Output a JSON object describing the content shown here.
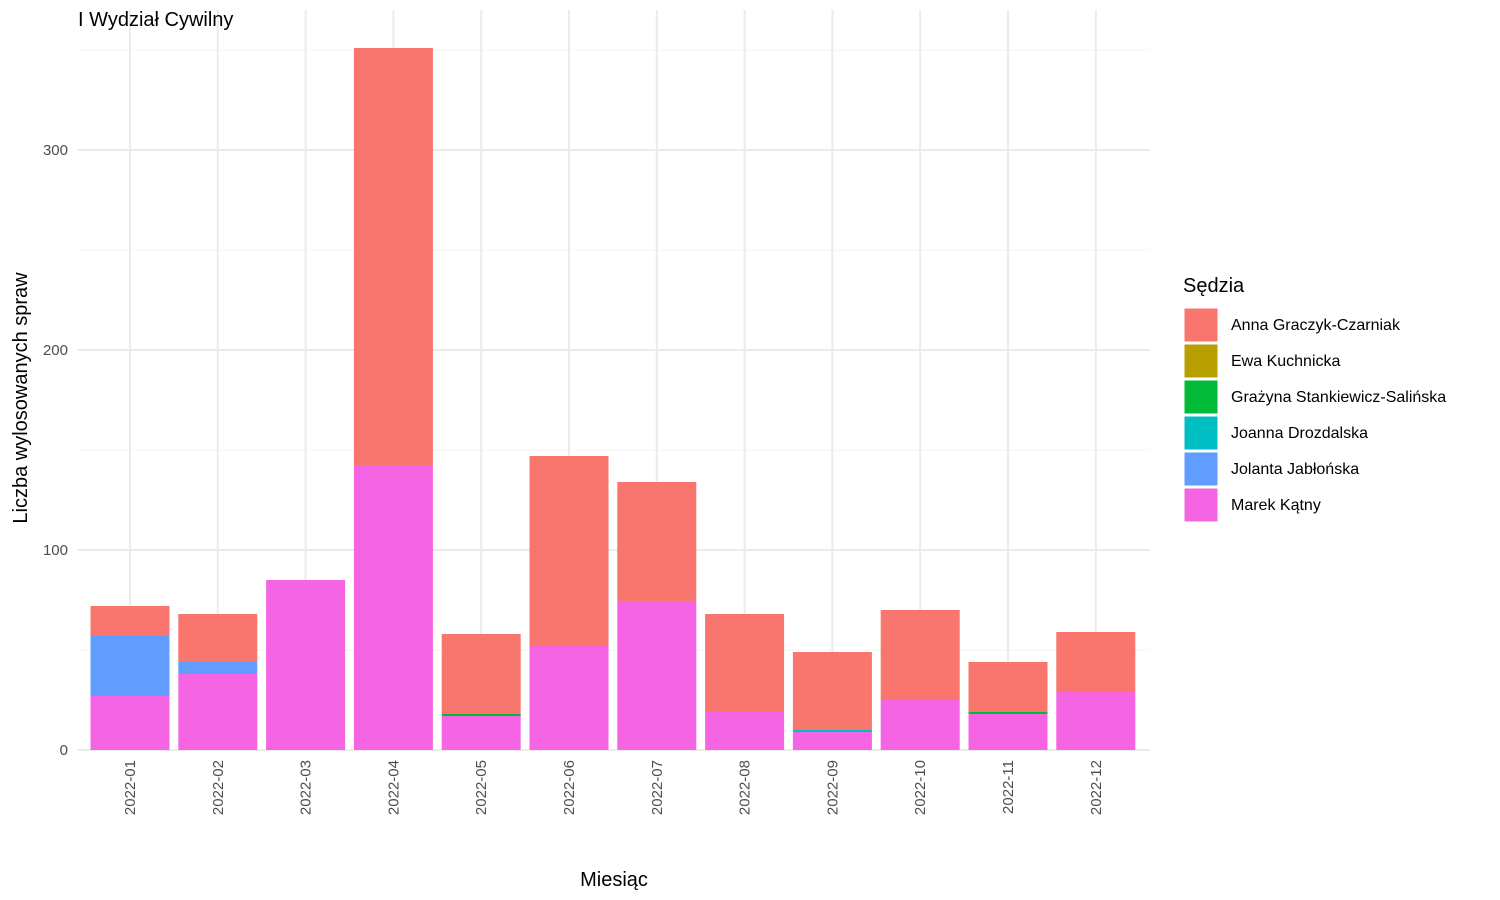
{
  "chart_data": {
    "type": "bar",
    "stacked": true,
    "title": "I Wydział Cywilny",
    "xlabel": "Miesiąc",
    "ylabel": "Liczba wylosowanych spraw",
    "ylim": [
      0,
      355
    ],
    "yticks": [
      0,
      100,
      200,
      300
    ],
    "grid": true,
    "legend_position": "right",
    "legend_title": "Sędzia",
    "categories": [
      "2022-01",
      "2022-02",
      "2022-03",
      "2022-04",
      "2022-05",
      "2022-06",
      "2022-07",
      "2022-08",
      "2022-09",
      "2022-10",
      "2022-11",
      "2022-12"
    ],
    "series": [
      {
        "name": "Marek Kątny",
        "color": "#F564E3",
        "values": [
          27,
          38,
          85,
          142,
          17,
          52,
          74,
          19,
          9,
          25,
          18,
          29
        ]
      },
      {
        "name": "Jolanta Jabłońska",
        "color": "#619CFF",
        "values": [
          30,
          6,
          0,
          0,
          0,
          0,
          0,
          0,
          0,
          0,
          0,
          0
        ]
      },
      {
        "name": "Joanna Drozdalska",
        "color": "#00BFC4",
        "values": [
          0,
          0,
          0,
          0,
          0,
          0,
          0,
          0,
          1,
          0,
          0,
          0
        ]
      },
      {
        "name": "Grażyna Stankiewicz-Salińska",
        "color": "#00BA38",
        "values": [
          0,
          0,
          0,
          0,
          1,
          0,
          0,
          0,
          0,
          0,
          1,
          0
        ]
      },
      {
        "name": "Ewa Kuchnicka",
        "color": "#B79F00",
        "values": [
          0,
          0,
          0,
          0,
          0,
          0,
          0,
          0,
          0,
          0,
          0,
          0
        ]
      },
      {
        "name": "Anna Graczyk-Czarniak",
        "color": "#F8766D",
        "values": [
          15,
          24,
          0,
          209,
          40,
          95,
          60,
          49,
          39,
          45,
          25,
          30
        ]
      }
    ],
    "legend_order": [
      "Anna Graczyk-Czarniak",
      "Ewa Kuchnicka",
      "Grażyna Stankiewicz-Salińska",
      "Joanna Drozdalska",
      "Jolanta Jabłońska",
      "Marek Kątny"
    ]
  }
}
